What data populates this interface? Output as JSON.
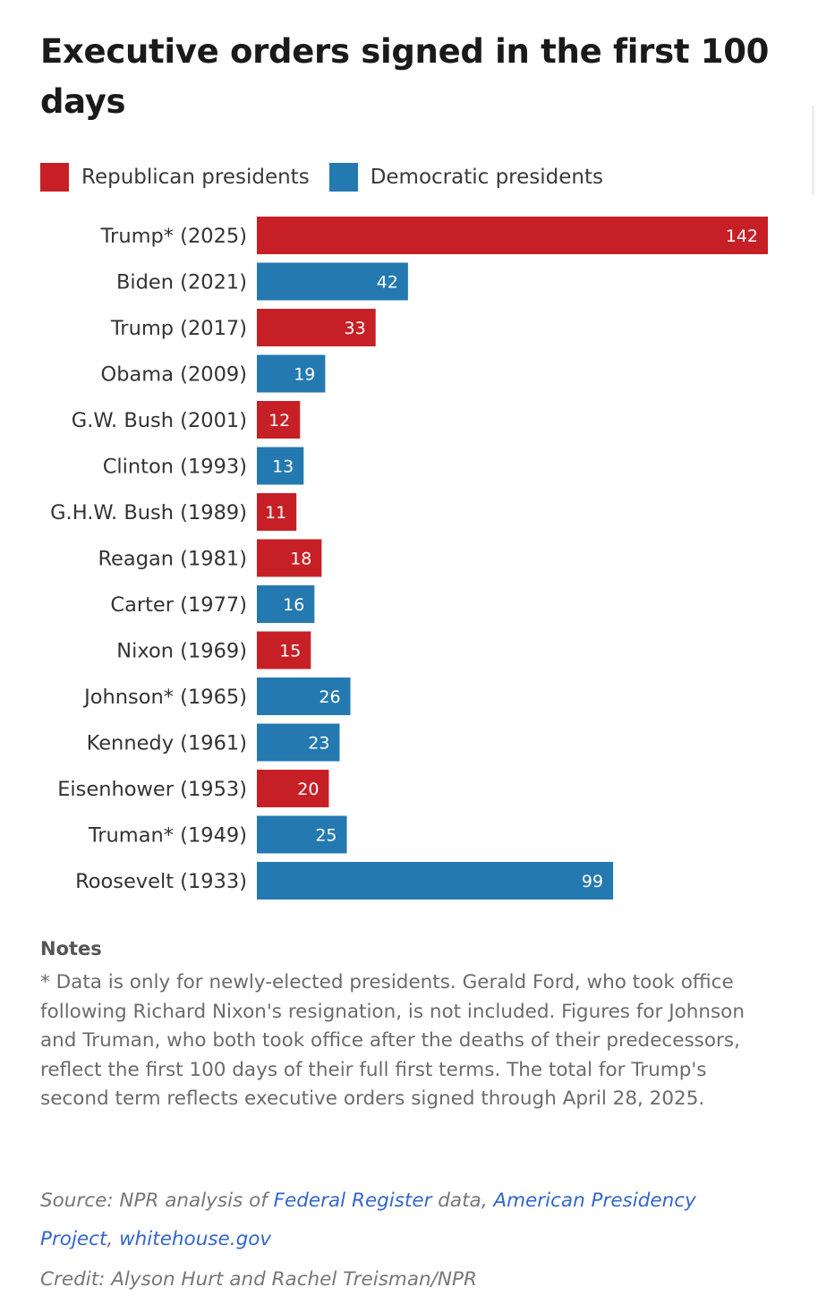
{
  "chart_data": {
    "type": "bar",
    "orientation": "horizontal",
    "title": "Executive orders signed in the first 100 days",
    "legend": [
      {
        "name": "Republican presidents",
        "color": "#c62026"
      },
      {
        "name": "Democratic presidents",
        "color": "#2479b0"
      }
    ],
    "legend_placement": "top-left",
    "grid": false,
    "xlim": [
      0,
      142
    ],
    "categories": [
      "Trump* (2025)",
      "Biden (2021)",
      "Trump (2017)",
      "Obama (2009)",
      "G.W. Bush (2001)",
      "Clinton (1993)",
      "G.H.W. Bush (1989)",
      "Reagan (1981)",
      "Carter (1977)",
      "Nixon (1969)",
      "Johnson* (1965)",
      "Kennedy (1961)",
      "Eisenhower (1953)",
      "Truman* (1949)",
      "Roosevelt (1933)"
    ],
    "values": [
      142,
      42,
      33,
      19,
      12,
      13,
      11,
      18,
      16,
      15,
      26,
      23,
      20,
      25,
      99
    ],
    "party": [
      "R",
      "D",
      "R",
      "D",
      "R",
      "D",
      "R",
      "R",
      "D",
      "R",
      "D",
      "D",
      "R",
      "D",
      "D"
    ],
    "colors": {
      "R": "#c62026",
      "D": "#2479b0"
    }
  },
  "notes": {
    "heading": "Notes",
    "text": "* Data is only for newly-elected presidents. Gerald Ford, who took office following Richard Nixon's resignation, is not included. Figures for Johnson and Truman, who both took office after the deaths of their predecessors, reflect the first 100 days of their full first terms. The total for Trump's second term reflects executive orders signed through April 28, 2025."
  },
  "source": {
    "prefix": "Source: NPR analysis of ",
    "link1": "Federal Register",
    "middle": " data, ",
    "link2": "American Presidency Project",
    "sep": ", ",
    "link3": "whitehouse.gov"
  },
  "credit": "Credit: Alyson Hurt and Rachel Treisman/NPR"
}
